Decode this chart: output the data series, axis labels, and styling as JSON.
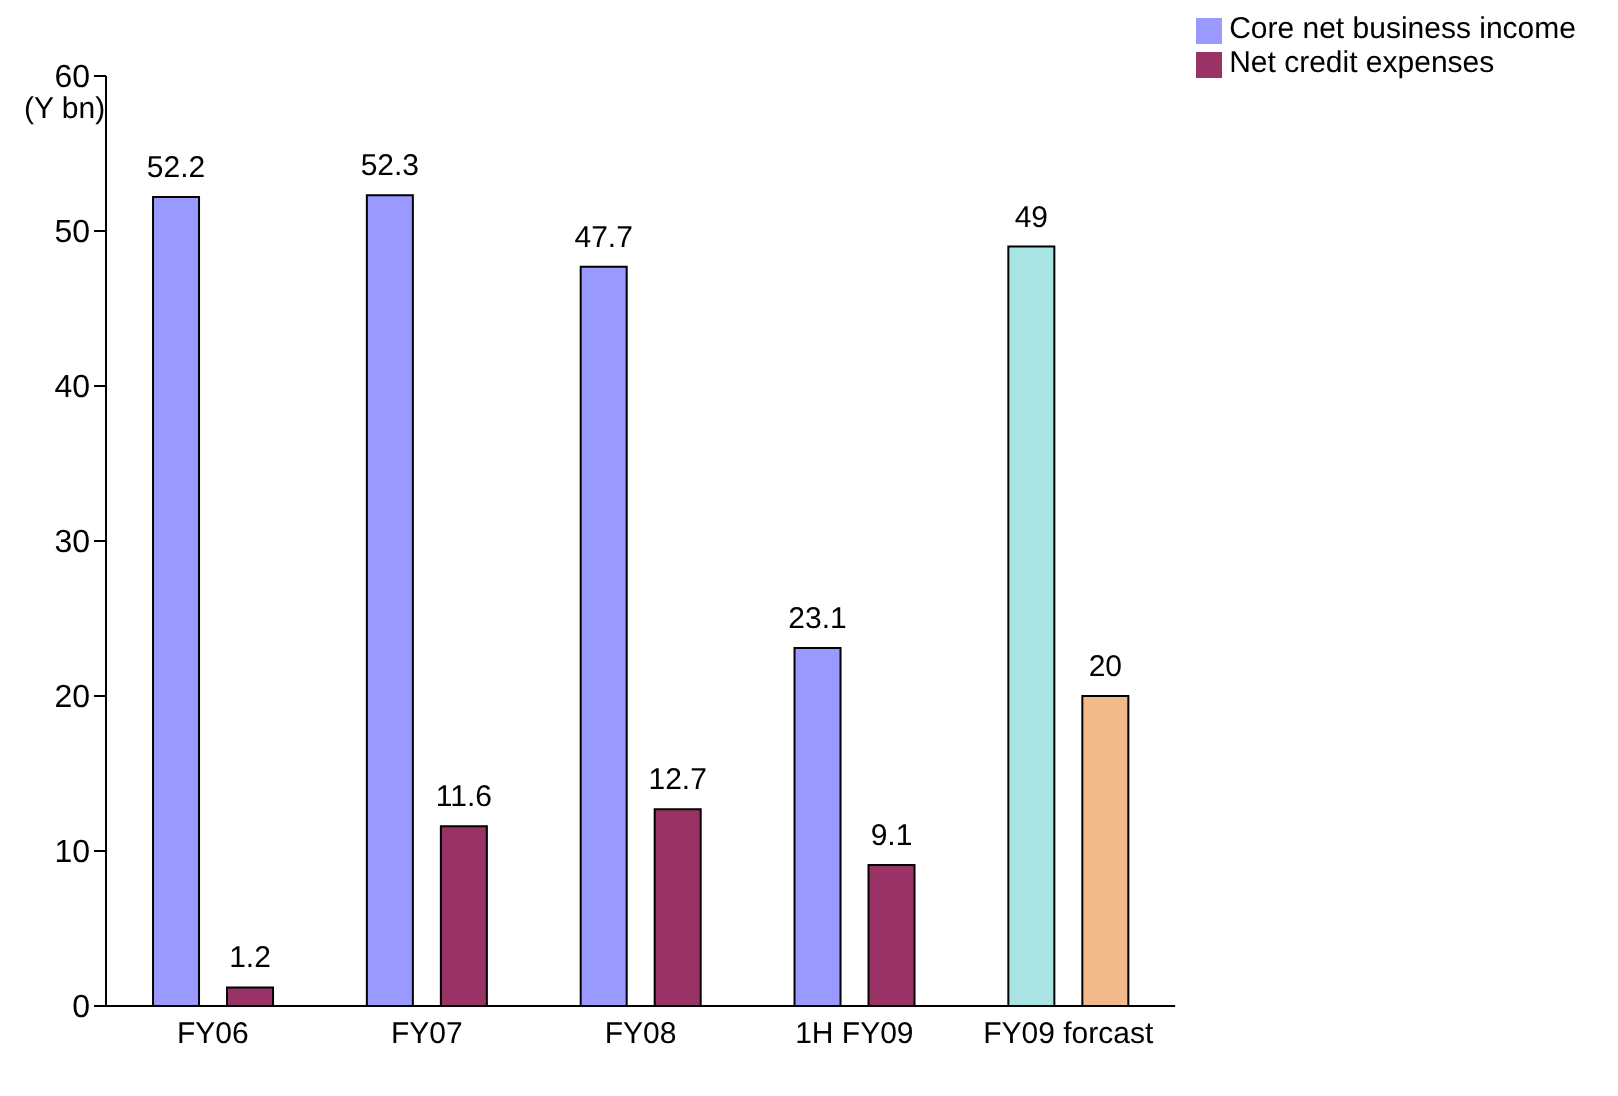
{
  "chart_data": {
    "type": "bar",
    "ylabel": "(Y bn)",
    "categories": [
      "FY06",
      "FY07",
      "FY08",
      "1H FY09",
      "FY09 forcast"
    ],
    "series": [
      {
        "name": "Core net business income",
        "color": "#9999ff",
        "colors": [
          "#9999ff",
          "#9999ff",
          "#9999ff",
          "#9999ff",
          "#a8e4e4"
        ],
        "values": [
          52.2,
          52.3,
          47.7,
          23.1,
          49
        ]
      },
      {
        "name": "Net credit expenses",
        "color": "#993366",
        "colors": [
          "#993366",
          "#993366",
          "#993366",
          "#993366",
          "#f2b98a"
        ],
        "values": [
          1.2,
          11.6,
          12.7,
          9.1,
          20
        ]
      }
    ],
    "ylim": [
      0,
      60
    ],
    "yticks": [
      0,
      10,
      20,
      30,
      40,
      50,
      60
    ],
    "data_labels": true,
    "legend": "top right",
    "grid": false
  }
}
